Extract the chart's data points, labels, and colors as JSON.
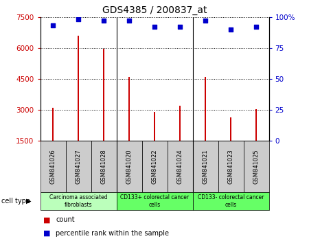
{
  "title": "GDS4385 / 200837_at",
  "samples": [
    "GSM841026",
    "GSM841027",
    "GSM841028",
    "GSM841020",
    "GSM841022",
    "GSM841024",
    "GSM841021",
    "GSM841023",
    "GSM841025"
  ],
  "counts": [
    3100,
    6600,
    5950,
    4600,
    2900,
    3200,
    4600,
    2650,
    3050
  ],
  "percentile_ranks": [
    93,
    98,
    97,
    97,
    92,
    92,
    97,
    90,
    92
  ],
  "ylim_left": [
    1500,
    7500
  ],
  "ylim_right": [
    0,
    100
  ],
  "yticks_left": [
    1500,
    3000,
    4500,
    6000,
    7500
  ],
  "yticks_right": [
    0,
    25,
    50,
    75,
    100
  ],
  "bar_color": "#cc0000",
  "dot_color": "#0000cc",
  "groups": [
    {
      "label": "Carcinoma associated\nfibroblasts",
      "start": 0,
      "end": 3,
      "color": "#bbffbb"
    },
    {
      "label": "CD133+ colorectal cancer\ncells",
      "start": 3,
      "end": 6,
      "color": "#66ff66"
    },
    {
      "label": "CD133- colorectal cancer\ncells",
      "start": 6,
      "end": 9,
      "color": "#66ff66"
    }
  ],
  "sample_box_color": "#cccccc",
  "cell_type_label": "cell type",
  "legend_count_label": "count",
  "legend_percentile_label": "percentile rank within the sample",
  "background_color": "#ffffff",
  "grid_color": "#000000",
  "tick_color_left": "#cc0000",
  "tick_color_right": "#0000cc"
}
